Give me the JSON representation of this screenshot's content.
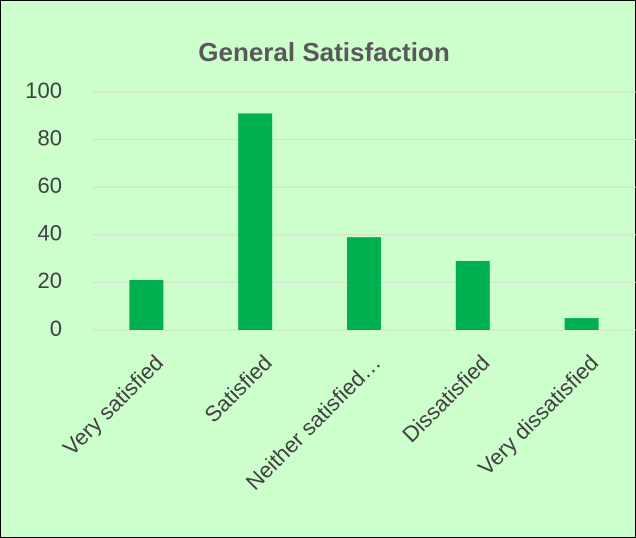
{
  "chart_data": {
    "type": "bar",
    "title": "General Satisfaction",
    "categories": [
      "Very satisfied",
      "Satisfied",
      "Neither satisfied…",
      "Dissatisfied",
      "Very dissatisfied"
    ],
    "values": [
      21,
      91,
      39,
      29,
      5
    ],
    "color": "#00b050",
    "ylim": [
      0,
      100
    ],
    "yticks": [
      0,
      20,
      40,
      60,
      80,
      100
    ],
    "grid": true
  }
}
